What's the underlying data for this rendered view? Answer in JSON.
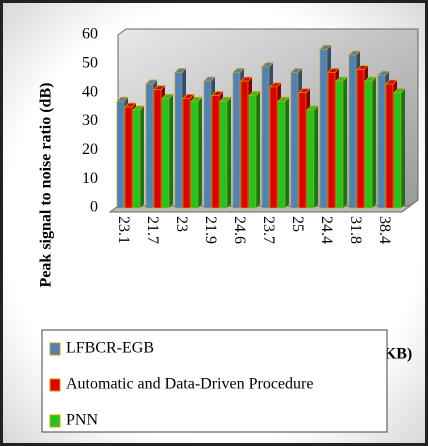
{
  "chart_data": {
    "type": "bar3d",
    "y_label": "Peak signal to noise ratio (dB)",
    "x_label": "KB)",
    "categories": [
      "23.1",
      "21.7",
      "23",
      "21.9",
      "24.6",
      "23.7",
      "25",
      "24.4",
      "31.8",
      "38.4"
    ],
    "series": [
      {
        "name": "LFBCR-EGB",
        "color": "#4f81bd",
        "values": [
          37,
          43,
          47,
          44,
          47,
          49,
          47,
          55,
          53,
          46
        ]
      },
      {
        "name": "Automatic and Data-Driven Procedure",
        "color": "#e00000",
        "values": [
          35,
          41,
          38,
          39,
          44,
          42,
          40,
          47,
          48,
          43
        ]
      },
      {
        "name": "PNN",
        "color": "#22c422",
        "values": [
          34,
          38,
          37,
          37,
          39,
          37,
          34,
          44,
          44,
          40
        ]
      }
    ],
    "ylim": [
      0,
      60
    ],
    "yticks": [
      0,
      10,
      20,
      30,
      40,
      50,
      60
    ],
    "grid": false
  }
}
